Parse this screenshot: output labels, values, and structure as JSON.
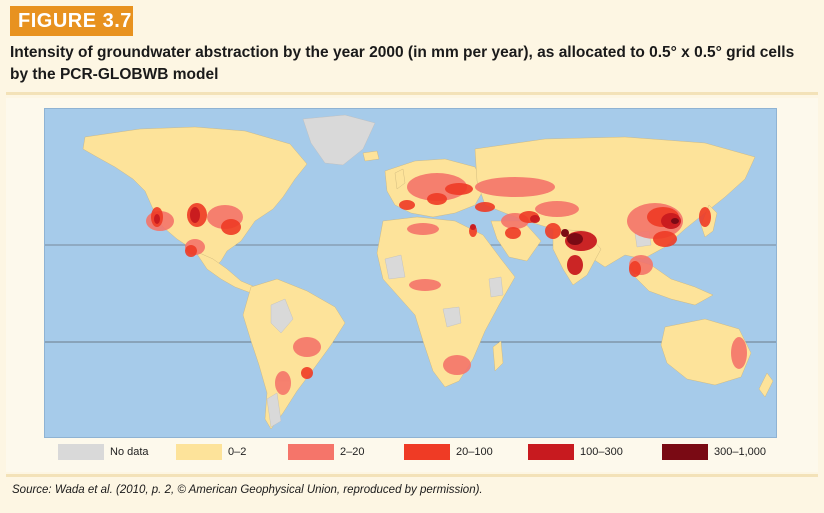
{
  "figure": {
    "tag": "FIGURE 3.7",
    "title": "Intensity of groundwater abstraction by the year 2000 (in mm per year), as allocated to 0.5° x 0.5° grid cells by the PCR-GLOBWB model",
    "source": "Source: Wada et al. (2010, p. 2, © American Geophysical Union, reproduced by permission)."
  },
  "colors": {
    "ocean": "#a6cbea",
    "no_data": "#d9d9d9",
    "low": "#fde39a",
    "mid": "#f5756a",
    "high": "#ef3b25",
    "very_high": "#c81a1f",
    "extreme": "#7a0a14"
  },
  "legend": [
    {
      "label": "No data",
      "color": "#d9d9d9"
    },
    {
      "label": "0–2",
      "color": "#fde39a"
    },
    {
      "label": "2–20",
      "color": "#f5756a"
    },
    {
      "label": "20–100",
      "color": "#ef3b25"
    },
    {
      "label": "100–300",
      "color": "#c81a1f"
    },
    {
      "label": "300–1,000",
      "color": "#7a0a14"
    }
  ]
}
